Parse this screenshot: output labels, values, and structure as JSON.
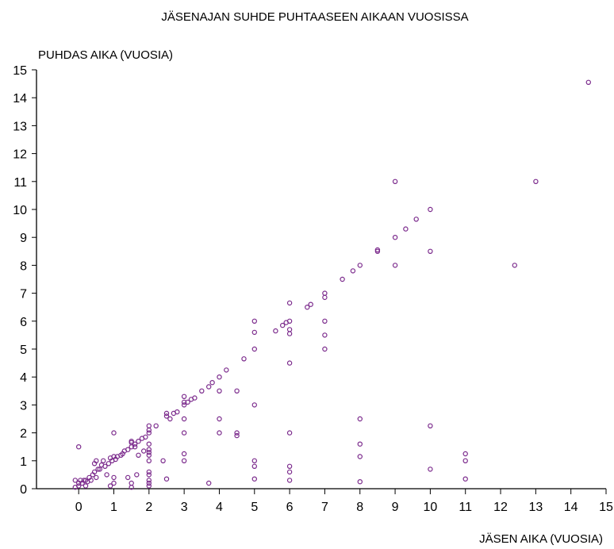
{
  "chart_data": {
    "type": "scatter",
    "title": "JÄSENAJAN SUHDE PUHTAASEEN AIKAAN VUOSISSA",
    "xlabel": "JÄSEN AIKA (VUOSIA)",
    "ylabel": "PUHDAS AIKA (VUOSIA)",
    "xlim": [
      -1.2,
      15
    ],
    "ylim": [
      0,
      15
    ],
    "xticks": [
      "0",
      "1",
      "2",
      "3",
      "4",
      "5",
      "6",
      "7",
      "8",
      "9",
      "10",
      "11",
      "12",
      "13",
      "14",
      "15"
    ],
    "yticks": [
      "0",
      "1",
      "2",
      "3",
      "4",
      "5",
      "6",
      "7",
      "8",
      "9",
      "10",
      "11",
      "12",
      "13",
      "14",
      "15"
    ],
    "grid": false,
    "marker_color": "#7b2a8c",
    "series": [
      {
        "points": [
          [
            -0.1,
            0.05
          ],
          [
            -0.1,
            0.3
          ],
          [
            0,
            0.1
          ],
          [
            0,
            0.2
          ],
          [
            0,
            1.5
          ],
          [
            0.05,
            0.3
          ],
          [
            0.1,
            0.2
          ],
          [
            0.15,
            0.3
          ],
          [
            0.2,
            0.1
          ],
          [
            0.2,
            0.3
          ],
          [
            0.25,
            0.25
          ],
          [
            0.3,
            0.4
          ],
          [
            0.35,
            0.3
          ],
          [
            0.4,
            0.5
          ],
          [
            0.45,
            0.6
          ],
          [
            0.45,
            0.9
          ],
          [
            0.5,
            1.0
          ],
          [
            0.5,
            0.4
          ],
          [
            0.55,
            0.7
          ],
          [
            0.6,
            0.7
          ],
          [
            0.65,
            0.85
          ],
          [
            0.7,
            1.0
          ],
          [
            0.75,
            0.8
          ],
          [
            0.8,
            0.5
          ],
          [
            0.85,
            0.9
          ],
          [
            0.9,
            0.1
          ],
          [
            0.9,
            1.1
          ],
          [
            0.95,
            1.0
          ],
          [
            1.0,
            2.0
          ],
          [
            1.0,
            1.15
          ],
          [
            1.0,
            0.4
          ],
          [
            1.0,
            0.2
          ],
          [
            1.05,
            1.05
          ],
          [
            1.1,
            1.15
          ],
          [
            1.2,
            1.2
          ],
          [
            1.25,
            1.25
          ],
          [
            1.3,
            1.35
          ],
          [
            1.4,
            1.4
          ],
          [
            1.4,
            0.4
          ],
          [
            1.5,
            1.5
          ],
          [
            1.5,
            1.7
          ],
          [
            1.5,
            1.65
          ],
          [
            1.5,
            0.2
          ],
          [
            1.5,
            0.05
          ],
          [
            1.6,
            1.6
          ],
          [
            1.6,
            1.5
          ],
          [
            1.65,
            0.5
          ],
          [
            1.7,
            1.7
          ],
          [
            1.7,
            1.2
          ],
          [
            1.8,
            1.8
          ],
          [
            1.85,
            1.35
          ],
          [
            1.9,
            1.85
          ],
          [
            2.0,
            2.25
          ],
          [
            2.0,
            2.1
          ],
          [
            2.0,
            2.0
          ],
          [
            2.0,
            1.6
          ],
          [
            2.0,
            1.4
          ],
          [
            2.0,
            1.3
          ],
          [
            2.0,
            1.2
          ],
          [
            2.0,
            1.0
          ],
          [
            2.0,
            0.6
          ],
          [
            2.0,
            0.5
          ],
          [
            2.0,
            0.3
          ],
          [
            2.0,
            0.2
          ],
          [
            2.0,
            0.1
          ],
          [
            2.2,
            2.25
          ],
          [
            2.4,
            1.0
          ],
          [
            2.5,
            0.35
          ],
          [
            2.5,
            2.7
          ],
          [
            2.5,
            2.6
          ],
          [
            2.6,
            2.5
          ],
          [
            2.7,
            2.7
          ],
          [
            2.8,
            2.75
          ],
          [
            3.0,
            3.3
          ],
          [
            3.0,
            3.1
          ],
          [
            3.0,
            3.0
          ],
          [
            3.0,
            2.5
          ],
          [
            3.0,
            2.0
          ],
          [
            3.0,
            1.25
          ],
          [
            3.0,
            1.0
          ],
          [
            3.1,
            3.1
          ],
          [
            3.2,
            3.2
          ],
          [
            3.3,
            3.25
          ],
          [
            3.5,
            3.5
          ],
          [
            3.7,
            3.65
          ],
          [
            3.7,
            0.2
          ],
          [
            3.8,
            3.8
          ],
          [
            4.0,
            4.0
          ],
          [
            4.0,
            3.5
          ],
          [
            4.0,
            2.5
          ],
          [
            4.0,
            2.0
          ],
          [
            4.2,
            4.25
          ],
          [
            4.5,
            3.5
          ],
          [
            4.5,
            2.0
          ],
          [
            4.5,
            1.9
          ],
          [
            4.7,
            4.65
          ],
          [
            5.0,
            6.0
          ],
          [
            5.0,
            5.6
          ],
          [
            5.0,
            5.0
          ],
          [
            5.0,
            3.0
          ],
          [
            5.0,
            1.0
          ],
          [
            5.0,
            0.8
          ],
          [
            5.0,
            0.35
          ],
          [
            5.6,
            5.65
          ],
          [
            5.8,
            5.85
          ],
          [
            5.9,
            5.95
          ],
          [
            6.0,
            6.65
          ],
          [
            6.0,
            6.0
          ],
          [
            6.0,
            5.7
          ],
          [
            6.0,
            5.55
          ],
          [
            6.0,
            4.5
          ],
          [
            6.0,
            2.0
          ],
          [
            6.0,
            0.8
          ],
          [
            6.0,
            0.6
          ],
          [
            6.0,
            0.3
          ],
          [
            6.5,
            6.5
          ],
          [
            6.6,
            6.6
          ],
          [
            7.0,
            7.0
          ],
          [
            7.0,
            6.85
          ],
          [
            7.0,
            6.0
          ],
          [
            7.0,
            5.5
          ],
          [
            7.0,
            5.0
          ],
          [
            7.5,
            7.5
          ],
          [
            7.8,
            7.8
          ],
          [
            8.0,
            8.0
          ],
          [
            8.0,
            2.5
          ],
          [
            8.0,
            1.6
          ],
          [
            8.0,
            1.15
          ],
          [
            8.0,
            0.25
          ],
          [
            8.5,
            8.5
          ],
          [
            8.5,
            8.55
          ],
          [
            9.0,
            11.0
          ],
          [
            9.0,
            9.0
          ],
          [
            9.0,
            8.0
          ],
          [
            9.3,
            9.3
          ],
          [
            9.6,
            9.65
          ],
          [
            10.0,
            10.0
          ],
          [
            10.0,
            8.5
          ],
          [
            10.0,
            2.25
          ],
          [
            10.0,
            0.7
          ],
          [
            11.0,
            1.25
          ],
          [
            11.0,
            1.0
          ],
          [
            11.0,
            0.35
          ],
          [
            12.4,
            8.0
          ],
          [
            13.0,
            11.0
          ],
          [
            14.5,
            14.55
          ]
        ]
      }
    ]
  }
}
